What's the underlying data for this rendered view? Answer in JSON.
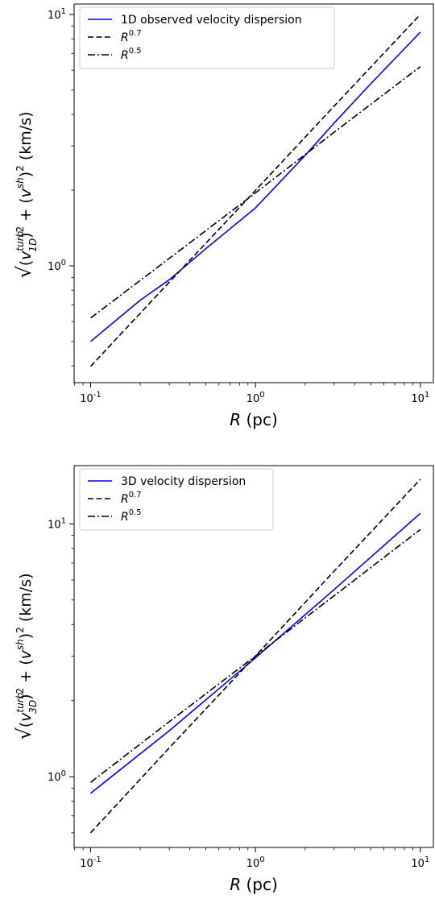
{
  "chart_data": [
    {
      "type": "line",
      "xscale": "log",
      "yscale": "log",
      "xlim": [
        0.0794,
        12.0
      ],
      "ylim": [
        0.343,
        11.0
      ],
      "xlabel": "R (pc)",
      "ylabel": "√((v_1D^turb)² + (v^sh)²) (km/s)",
      "x_ticks": [
        "10^-1",
        "10^0",
        "10^1"
      ],
      "y_ticks": [
        "10^0",
        "10^1"
      ],
      "legend_position": "upper-left",
      "series": [
        {
          "name": "1D observed velocity dispersion",
          "color": "#0000ff",
          "style": "solid",
          "x": [
            0.1,
            0.2,
            0.3,
            0.5,
            1.0,
            2.0,
            3.0,
            5.0,
            10.0
          ],
          "y": [
            0.5,
            0.73,
            0.88,
            1.17,
            1.7,
            2.75,
            3.7,
            5.3,
            8.5
          ]
        },
        {
          "name": "R^0.7",
          "color": "#000000",
          "style": "dashed",
          "x": [
            0.1,
            0.3,
            1.0,
            3.0,
            10.0
          ],
          "y": [
            0.398,
            0.861,
            1.995,
            4.32,
            10.0
          ]
        },
        {
          "name": "R^0.5",
          "color": "#000000",
          "style": "dashdot",
          "x": [
            0.1,
            0.3,
            1.0,
            3.0,
            10.0
          ],
          "y": [
            0.62,
            1.07,
            1.95,
            3.4,
            6.2
          ]
        }
      ]
    },
    {
      "type": "line",
      "xscale": "log",
      "yscale": "log",
      "xlim": [
        0.0794,
        12.0
      ],
      "ylim": [
        0.525,
        17.0
      ],
      "xlabel": "R (pc)",
      "ylabel": "√((v_3D^turb)² + (v^sh)²) (km/s)",
      "x_ticks": [
        "10^-1",
        "10^0",
        "10^1"
      ],
      "y_ticks": [
        "10^0",
        "10^1"
      ],
      "legend_position": "upper-left",
      "series": [
        {
          "name": "3D velocity dispersion",
          "color": "#0000ff",
          "style": "solid",
          "x": [
            0.1,
            0.3,
            1.0,
            3.0,
            10.0
          ],
          "y": [
            0.86,
            1.52,
            2.95,
            5.5,
            11.0
          ]
        },
        {
          "name": "R^0.7",
          "color": "#000000",
          "style": "dashed",
          "x": [
            0.1,
            0.3,
            1.0,
            3.0,
            10.0
          ],
          "y": [
            0.6,
            1.3,
            3.0,
            6.5,
            15.0
          ]
        },
        {
          "name": "R^0.5",
          "color": "#000000",
          "style": "dashdot",
          "x": [
            0.1,
            0.3,
            1.0,
            3.0,
            10.0
          ],
          "y": [
            0.95,
            1.65,
            3.0,
            5.2,
            9.5
          ]
        }
      ]
    }
  ]
}
